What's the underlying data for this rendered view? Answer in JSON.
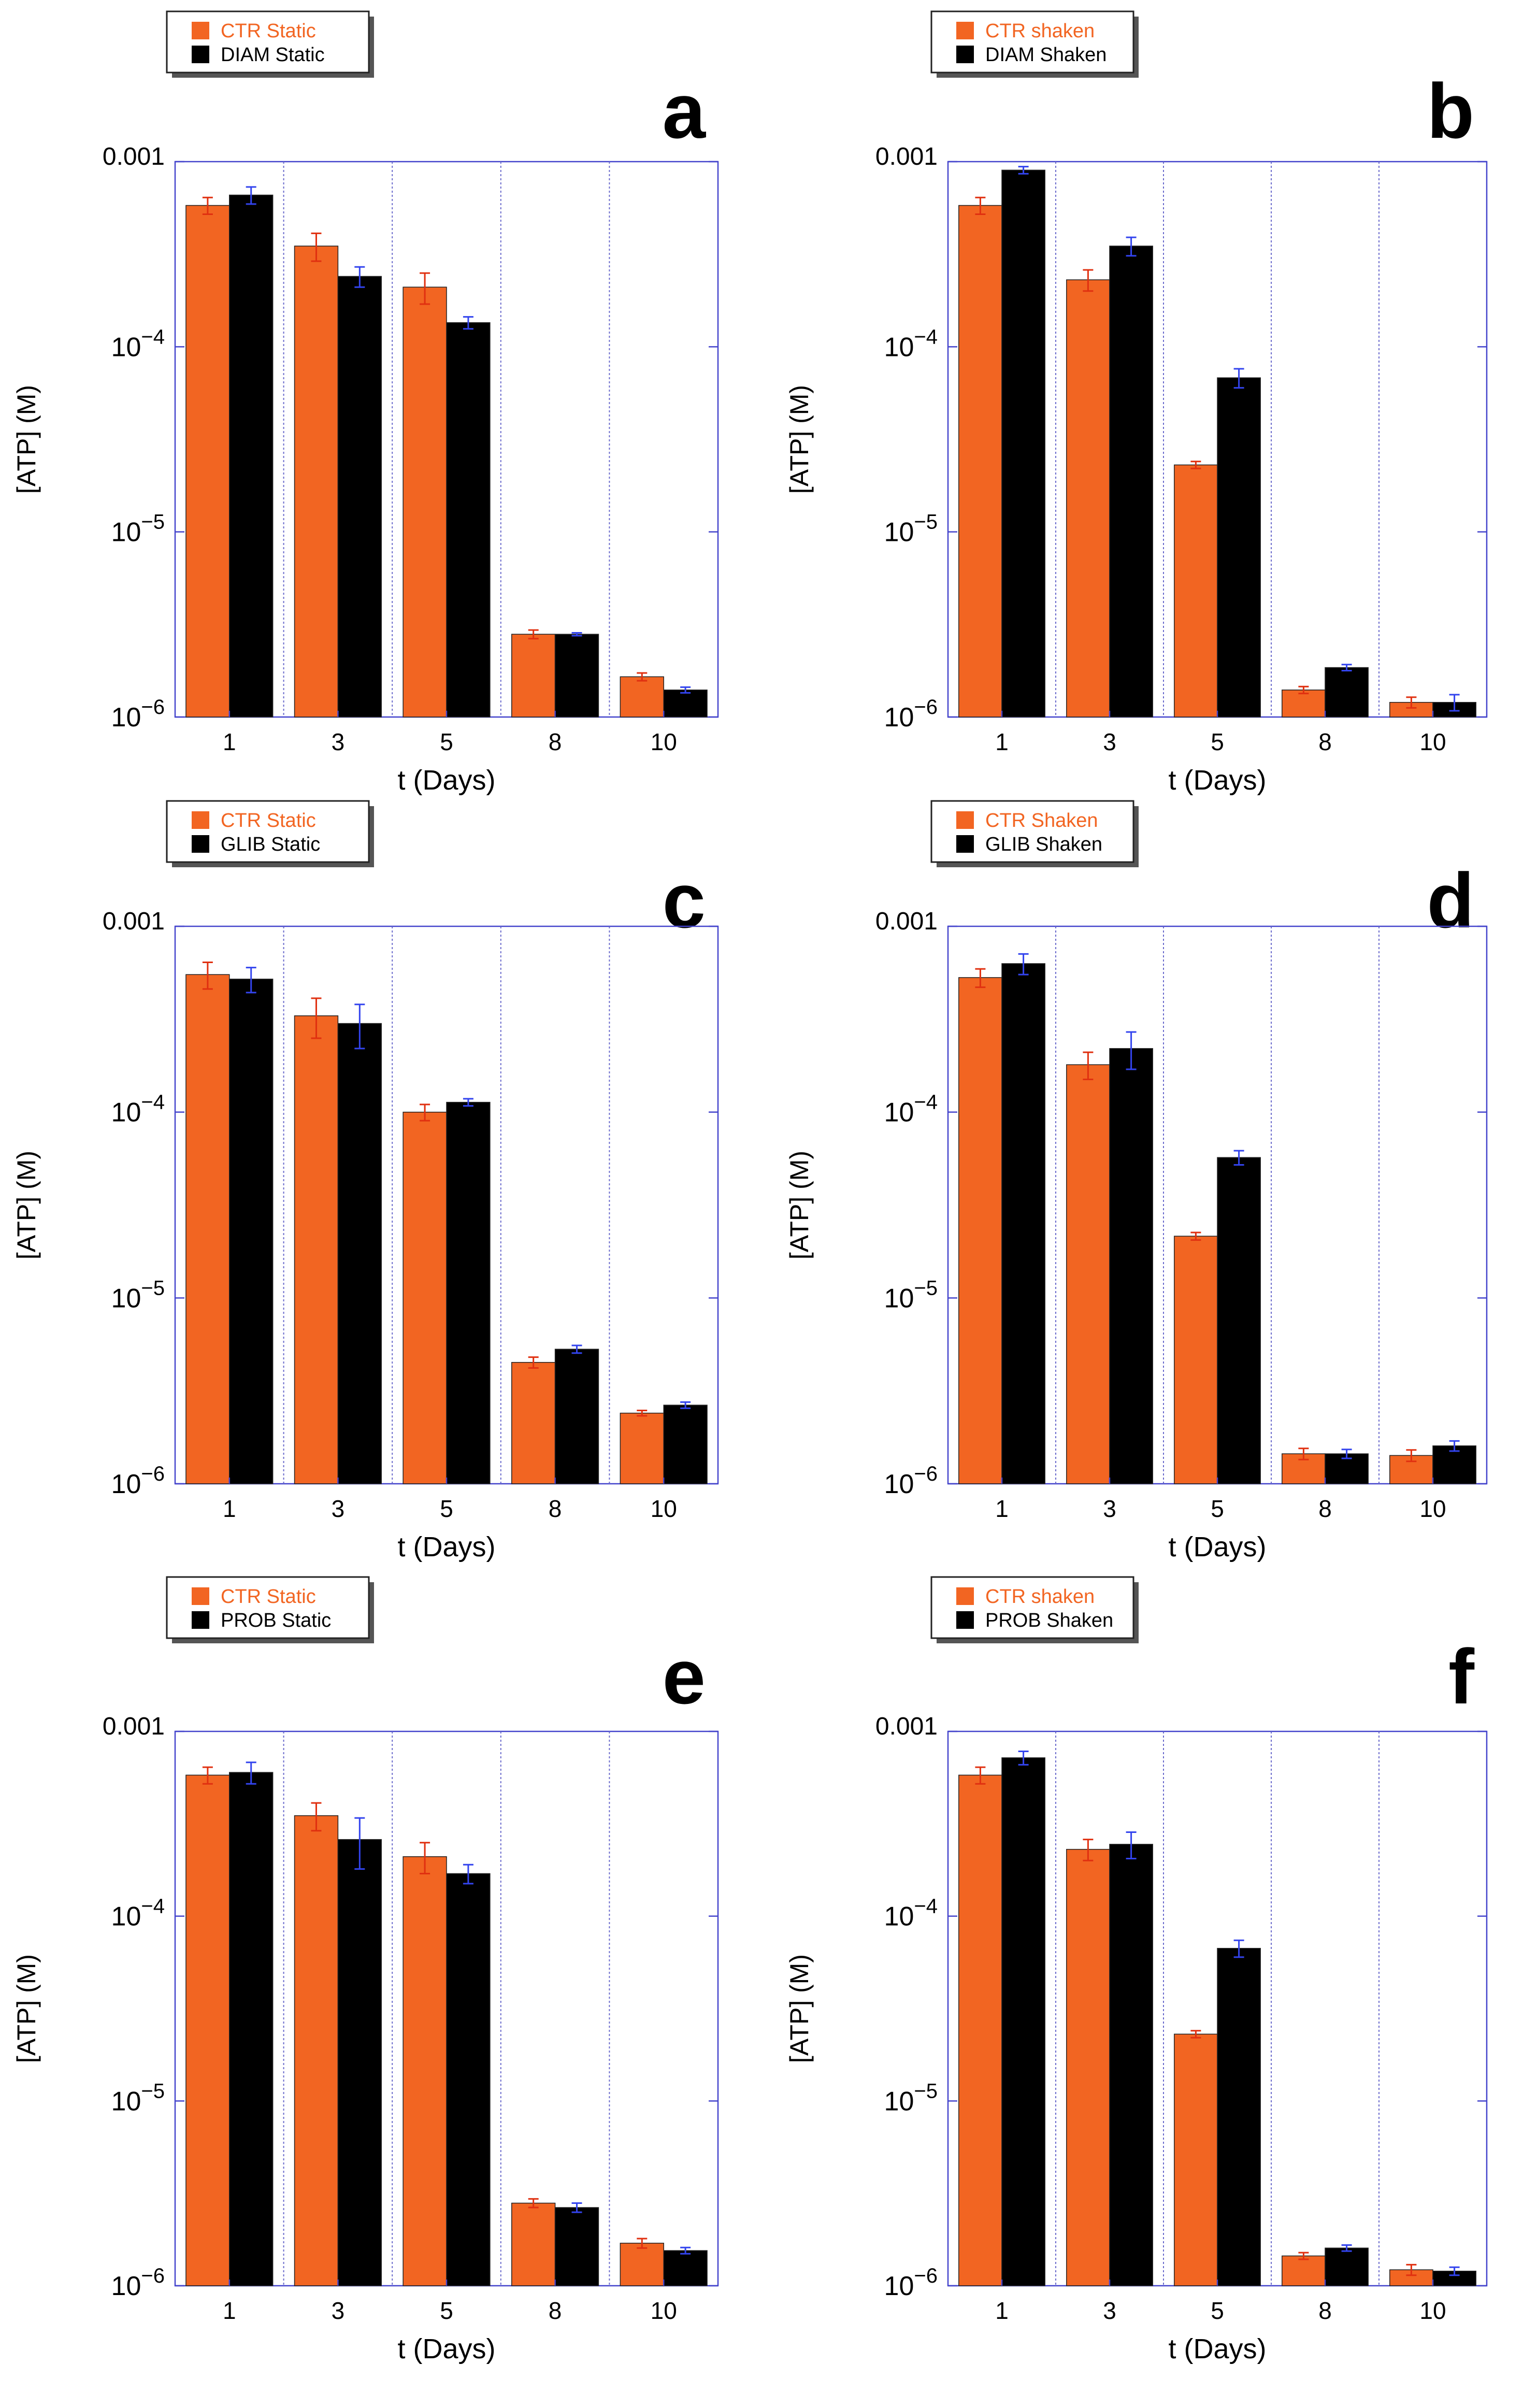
{
  "figure": {
    "panel_count": 6
  },
  "colors": {
    "orange": "#f26522",
    "black": "#000000",
    "axis_frame": "#4444cc",
    "grid": "#6a6acc",
    "error_orange": "#e03010",
    "error_black": "#3344ee",
    "legend_text_orange": "#f26522",
    "legend_text_black": "#000000",
    "tick_text": "#000000"
  },
  "chart_data": [
    {
      "type": "bar",
      "panel_label": "a",
      "categories": [
        "1",
        "3",
        "5",
        "8",
        "10"
      ],
      "xlabel": "t  (Days)",
      "ylabel": "[ATP]  (M)",
      "yscale": "log",
      "ylim": [
        1e-06,
        0.001
      ],
      "yticks": [
        {
          "base": "0.001",
          "exp": ""
        },
        {
          "base": "10",
          "exp": "−4"
        },
        {
          "base": "10",
          "exp": "−5"
        },
        {
          "base": "10",
          "exp": "−6"
        }
      ],
      "legend": [
        "CTR Static",
        "DIAM Static"
      ],
      "series": [
        {
          "name": "CTR Static",
          "values": [
            0.00058,
            0.00035,
            0.00021,
            2.8e-06,
            1.65e-06
          ],
          "errors": [
            6e-05,
            6e-05,
            4e-05,
            1.5e-07,
            8e-08
          ]
        },
        {
          "name": "DIAM Static",
          "values": [
            0.00066,
            0.00024,
            0.000135,
            2.8e-06,
            1.4e-06
          ],
          "errors": [
            7e-05,
            3e-05,
            1e-05,
            5e-08,
            5e-08
          ]
        }
      ]
    },
    {
      "type": "bar",
      "panel_label": "b",
      "categories": [
        "1",
        "3",
        "5",
        "8",
        "10"
      ],
      "xlabel": "t  (Days)",
      "ylabel": "[ATP]  (M)",
      "yscale": "log",
      "ylim": [
        1e-06,
        0.001
      ],
      "yticks": [
        {
          "base": "0.001",
          "exp": ""
        },
        {
          "base": "10",
          "exp": "−4"
        },
        {
          "base": "10",
          "exp": "−5"
        },
        {
          "base": "10",
          "exp": "−6"
        }
      ],
      "legend": [
        "CTR shaken",
        "DIAM Shaken"
      ],
      "series": [
        {
          "name": "CTR shaken",
          "values": [
            0.00058,
            0.00023,
            2.3e-05,
            1.4e-06,
            1.2e-06
          ],
          "errors": [
            6e-05,
            3e-05,
            1e-06,
            6e-08,
            8e-08
          ]
        },
        {
          "name": "DIAM Shaken",
          "values": [
            0.0009,
            0.00035,
            6.8e-05,
            1.85e-06,
            1.2e-06
          ],
          "errors": [
            4e-05,
            4e-05,
            8e-06,
            7e-08,
            1.2e-07
          ]
        }
      ]
    },
    {
      "type": "bar",
      "panel_label": "c",
      "categories": [
        "1",
        "3",
        "5",
        "8",
        "10"
      ],
      "xlabel": "t  (Days)",
      "ylabel": "[ATP]  (M)",
      "yscale": "log",
      "ylim": [
        1e-06,
        0.001
      ],
      "yticks": [
        {
          "base": "0.001",
          "exp": ""
        },
        {
          "base": "10",
          "exp": "−4"
        },
        {
          "base": "10",
          "exp": "−5"
        },
        {
          "base": "10",
          "exp": "−6"
        }
      ],
      "legend": [
        "CTR Static",
        "GLIB Static"
      ],
      "series": [
        {
          "name": "CTR Static",
          "values": [
            0.00055,
            0.00033,
            0.0001,
            4.5e-06,
            2.4e-06
          ],
          "errors": [
            9e-05,
            8e-05,
            1e-05,
            3e-07,
            8e-08
          ]
        },
        {
          "name": "GLIB Static",
          "values": [
            0.00052,
            0.0003,
            0.000113,
            5.3e-06,
            2.65e-06
          ],
          "errors": [
            8e-05,
            8e-05,
            5e-06,
            2.5e-07,
            1e-07
          ]
        }
      ]
    },
    {
      "type": "bar",
      "panel_label": "d",
      "categories": [
        "1",
        "3",
        "5",
        "8",
        "10"
      ],
      "xlabel": "t  (Days)",
      "ylabel": "[ATP]  (M)",
      "yscale": "log",
      "ylim": [
        1e-06,
        0.001
      ],
      "yticks": [
        {
          "base": "0.001",
          "exp": ""
        },
        {
          "base": "10",
          "exp": "−4"
        },
        {
          "base": "10",
          "exp": "−5"
        },
        {
          "base": "10",
          "exp": "−6"
        }
      ],
      "legend": [
        "CTR Shaken",
        "GLIB Shaken"
      ],
      "series": [
        {
          "name": "CTR Shaken",
          "values": [
            0.00053,
            0.00018,
            2.15e-05,
            1.45e-06,
            1.42e-06
          ],
          "errors": [
            6e-05,
            3e-05,
            1e-06,
            1e-07,
            1e-07
          ]
        },
        {
          "name": "GLIB Shaken",
          "values": [
            0.00063,
            0.00022,
            5.7e-05,
            1.45e-06,
            1.6e-06
          ],
          "errors": [
            8e-05,
            5e-05,
            5e-06,
            8e-08,
            1e-07
          ]
        }
      ]
    },
    {
      "type": "bar",
      "panel_label": "e",
      "categories": [
        "1",
        "3",
        "5",
        "8",
        "10"
      ],
      "xlabel": "t  (Days)",
      "ylabel": "[ATP]  (M)",
      "yscale": "log",
      "ylim": [
        1e-06,
        0.001
      ],
      "yticks": [
        {
          "base": "0.001",
          "exp": ""
        },
        {
          "base": "10",
          "exp": "−4"
        },
        {
          "base": "10",
          "exp": "−5"
        },
        {
          "base": "10",
          "exp": "−6"
        }
      ],
      "legend": [
        "CTR Static",
        "PROB Static"
      ],
      "series": [
        {
          "name": "CTR Static",
          "values": [
            0.00058,
            0.00035,
            0.00021,
            2.8e-06,
            1.7e-06
          ],
          "errors": [
            6e-05,
            6e-05,
            4e-05,
            1.5e-07,
            1e-07
          ]
        },
        {
          "name": "PROB Static",
          "values": [
            0.0006,
            0.00026,
            0.00017,
            2.65e-06,
            1.55e-06
          ],
          "errors": [
            8e-05,
            8e-05,
            2e-05,
            1.5e-07,
            6e-08
          ]
        }
      ]
    },
    {
      "type": "bar",
      "panel_label": "f",
      "categories": [
        "1",
        "3",
        "5",
        "8",
        "10"
      ],
      "xlabel": "t  (Days)",
      "ylabel": "[ATP]  (M)",
      "yscale": "log",
      "ylim": [
        1e-06,
        0.001
      ],
      "yticks": [
        {
          "base": "0.001",
          "exp": ""
        },
        {
          "base": "10",
          "exp": "−4"
        },
        {
          "base": "10",
          "exp": "−5"
        },
        {
          "base": "10",
          "exp": "−6"
        }
      ],
      "legend": [
        "CTR shaken",
        "PROB Shaken"
      ],
      "series": [
        {
          "name": "CTR shaken",
          "values": [
            0.00058,
            0.00023,
            2.3e-05,
            1.45e-06,
            1.22e-06
          ],
          "errors": [
            6e-05,
            3e-05,
            1e-06,
            6e-08,
            8e-08
          ]
        },
        {
          "name": "PROB Shaken",
          "values": [
            0.00072,
            0.000245,
            6.7e-05,
            1.6e-06,
            1.2e-06
          ],
          "errors": [
            6e-05,
            4e-05,
            7e-06,
            6e-08,
            6e-08
          ]
        }
      ]
    }
  ]
}
